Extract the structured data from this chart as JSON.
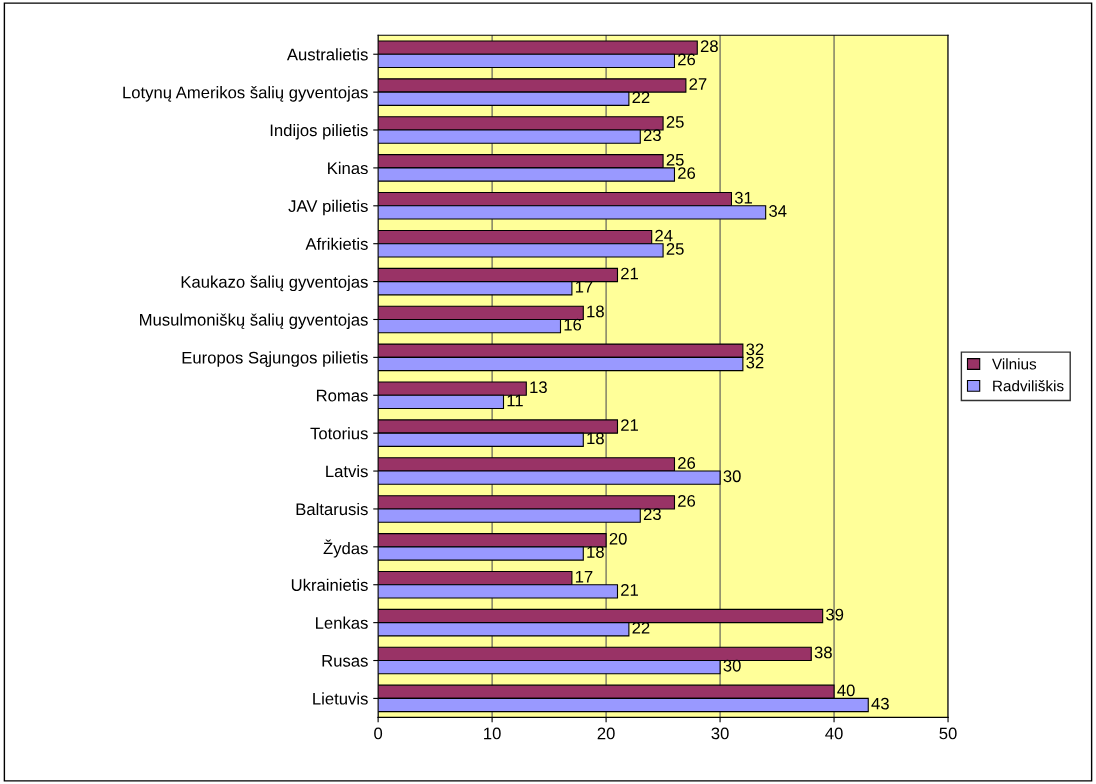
{
  "chart_data": {
    "type": "bar",
    "orientation": "horizontal",
    "categories": [
      "Australietis",
      "Lotynų Amerikos šalių gyventojas",
      "Indijos pilietis",
      "Kinas",
      "JAV pilietis",
      "Afrikietis",
      "Kaukazo šalių gyventojas",
      "Musulmoniškų šalių gyventojas",
      "Europos Sąjungos pilietis",
      "Romas",
      "Totorius",
      "Latvis",
      "Baltarusis",
      "Žydas",
      "Ukrainietis",
      "Lenkas",
      "Rusas",
      "Lietuvis"
    ],
    "series": [
      {
        "name": "Vilnius",
        "color": "#993366",
        "values": [
          28,
          27,
          25,
          25,
          31,
          24,
          21,
          18,
          32,
          13,
          21,
          26,
          26,
          20,
          17,
          39,
          38,
          40
        ]
      },
      {
        "name": "Radviliškis",
        "color": "#9999ff",
        "values": [
          26,
          22,
          23,
          26,
          34,
          25,
          17,
          16,
          32,
          11,
          18,
          30,
          23,
          18,
          21,
          22,
          30,
          43
        ]
      }
    ],
    "xlim": [
      0,
      50
    ],
    "xticks": [
      0,
      10,
      20,
      30,
      40,
      50
    ],
    "grid": "x",
    "legend": "right",
    "data_labels": true
  }
}
